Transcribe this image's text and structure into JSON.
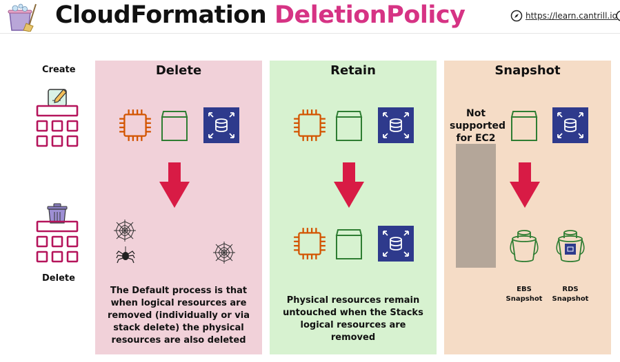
{
  "header": {
    "title_main": "CloudFormation",
    "title_accent": "DeletionPolicy",
    "link_text": "https://learn.cantrill.io"
  },
  "sidebar": {
    "create_label": "Create",
    "delete_label": "Delete"
  },
  "panels": {
    "delete": {
      "title": "Delete",
      "description": "The Default process is that when logical resources are removed (individually or via stack delete) the physical resources are also deleted"
    },
    "retain": {
      "title": "Retain",
      "description": "Physical resources remain untouched when the Stacks logical resources are removed"
    },
    "snapshot": {
      "title": "Snapshot",
      "not_supported": "Not supported for EC2",
      "ebs_label": "EBS Snapshot",
      "rds_label": "RDS Snapshot"
    }
  },
  "colors": {
    "accent": "#d63384",
    "ec2_orange": "#d35400",
    "storage_green": "#2e7d32",
    "rds_navy": "#2e3a8c",
    "arrow_red": "#d81b45",
    "stack_magenta": "#b5145b",
    "delete_panel": "#f1d1d9",
    "retain_panel": "#d7f2d0",
    "snapshot_panel": "#f5dcc6"
  }
}
